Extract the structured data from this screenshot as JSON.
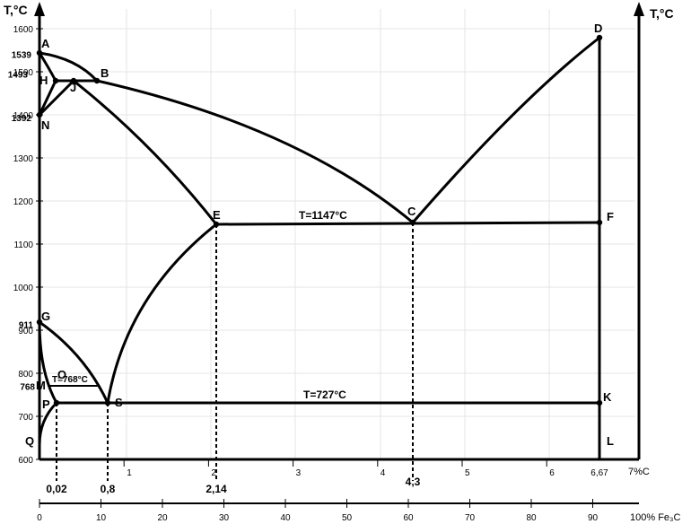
{
  "left_axis": {
    "title": "T,°C",
    "ticks": [
      600,
      700,
      800,
      900,
      1000,
      1100,
      1200,
      1300,
      1400,
      1500,
      1600
    ],
    "special": [
      {
        "value": 1539,
        "label": "1539"
      },
      {
        "value": 1493,
        "label": "1493"
      },
      {
        "value": 1392,
        "label": "1392"
      },
      {
        "value": 911,
        "label": "911"
      },
      {
        "value": 768,
        "label": "768"
      }
    ]
  },
  "right_axis": {
    "title": "T,°C"
  },
  "carbon_axis": {
    "unit_label": "7%C",
    "ticks": [
      "1",
      "2",
      "3",
      "4",
      "5",
      "6"
    ],
    "end_label": "6,67",
    "key_compositions": [
      {
        "c": 0.02,
        "label": "0,02"
      },
      {
        "c": 0.8,
        "label": "0,8"
      },
      {
        "c": 2.14,
        "label": "2,14"
      },
      {
        "c": 4.3,
        "label": "4,3"
      }
    ]
  },
  "cementite_axis": {
    "ticks": [
      "0",
      "10",
      "20",
      "30",
      "40",
      "50",
      "60",
      "70",
      "80",
      "90"
    ],
    "end_label": "100% Fe₃C"
  },
  "points": [
    {
      "id": "A",
      "c": 0,
      "t": 1539,
      "dot": true
    },
    {
      "id": "B",
      "c": 0.51,
      "t": 1493,
      "dot": true
    },
    {
      "id": "H",
      "c": 0.1,
      "t": 1493,
      "dot": true
    },
    {
      "id": "J",
      "c": 0.16,
      "t": 1493,
      "dot": true
    },
    {
      "id": "N",
      "c": 0,
      "t": 1392,
      "dot": true
    },
    {
      "id": "D",
      "c": 6.67,
      "t": 1570,
      "dot": true
    },
    {
      "id": "E",
      "c": 2.14,
      "t": 1147,
      "dot": true
    },
    {
      "id": "C",
      "c": 4.3,
      "t": 1147,
      "dot": true
    },
    {
      "id": "F",
      "c": 6.67,
      "t": 1147,
      "dot": true
    },
    {
      "id": "G",
      "c": 0,
      "t": 911,
      "dot": true
    },
    {
      "id": "M",
      "c": 0,
      "t": 768,
      "dot": false
    },
    {
      "id": "O",
      "c": 0.5,
      "t": 768,
      "dot": false
    },
    {
      "id": "P",
      "c": 0.02,
      "t": 727,
      "dot": true
    },
    {
      "id": "S",
      "c": 0.8,
      "t": 727,
      "dot": true
    },
    {
      "id": "K",
      "c": 6.67,
      "t": 727,
      "dot": true
    },
    {
      "id": "Q",
      "c": 0,
      "t": 600,
      "dot": false
    },
    {
      "id": "L",
      "c": 6.67,
      "t": 600,
      "dot": false
    }
  ],
  "line_labels": {
    "eutectic": "T=1147°C",
    "eutectoid": "T=727°C",
    "curie": "T=768°C"
  }
}
